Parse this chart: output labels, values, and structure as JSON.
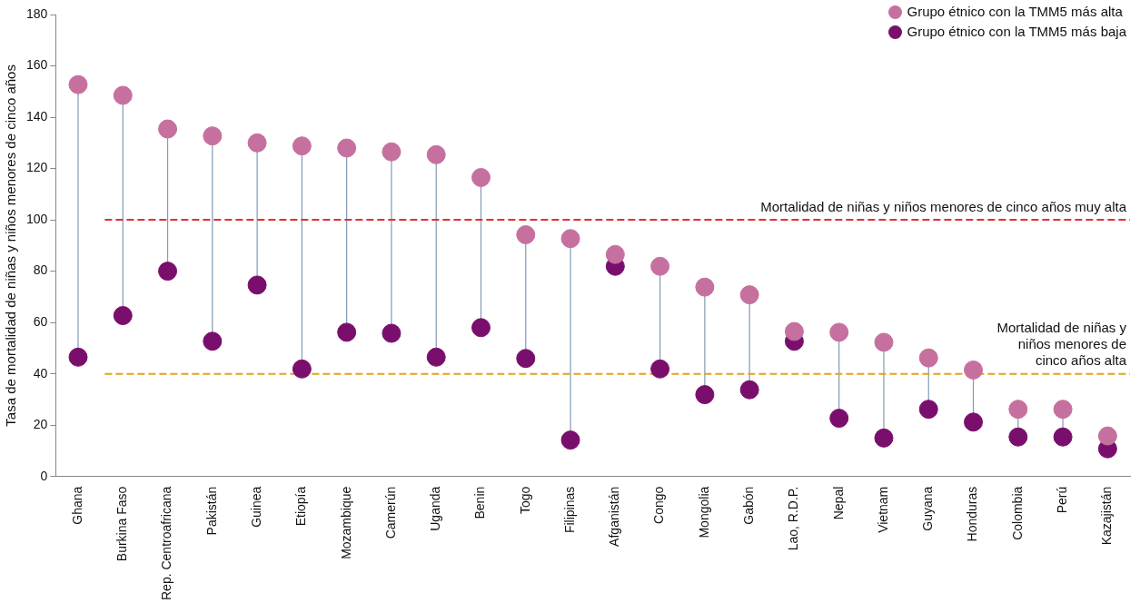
{
  "chart_data": {
    "type": "scatter",
    "ylabel": "Tasa de mortalidad de niñas y niños menores de cinco años",
    "categories": [
      "Ghana",
      "Burkina Faso",
      "Rep. Centroafricana",
      "Pakistán",
      "Guinea",
      "Etiopía",
      "Mozambique",
      "Camerún",
      "Uganda",
      "Benin",
      "Togo",
      "Filipinas",
      "Afganistán",
      "Congo",
      "Mongolia",
      "Gabón",
      "Lao, R.D.P.",
      "Nepal",
      "Vietnam",
      "Guyana",
      "Honduras",
      "Colombia",
      "Perú",
      "Kazajistán"
    ],
    "series": [
      {
        "name": "Grupo étnico con la TMM5 más alta",
        "color": "#c5709e",
        "values": [
          152.7,
          148.5,
          135.4,
          132.7,
          130,
          128.8,
          128,
          126.5,
          125.4,
          116.5,
          94.2,
          92.7,
          86.5,
          81.9,
          73.8,
          70.8,
          56.5,
          56.2,
          52.3,
          46.2,
          41.5,
          26.2,
          26.2,
          15.8
        ]
      },
      {
        "name": "Grupo étnico con la TMM5 más baja",
        "color": "#7a0e6c",
        "values": [
          46.5,
          62.7,
          80,
          52.7,
          74.6,
          41.9,
          56.2,
          55.8,
          46.5,
          58,
          46,
          14.2,
          81.9,
          41.9,
          31.9,
          33.8,
          52.7,
          22.7,
          15,
          26.2,
          21.2,
          15.4,
          15.4,
          10.8
        ]
      }
    ],
    "ylim": [
      0,
      180
    ],
    "yticks": [
      0,
      20,
      40,
      60,
      80,
      100,
      120,
      140,
      160,
      180
    ],
    "grid": false,
    "legend": "top right",
    "marker": "circle",
    "ref_lines": [
      {
        "axis": "y",
        "value": 100,
        "label": "Mortalidad de niñas y niños menores de cinco años muy alta",
        "color": "#e0302f",
        "line_style": "dashed"
      },
      {
        "axis": "y",
        "value": 40,
        "label": "Mortalidad de niñas y niños menores de cinco años alta",
        "color": "#e3a21a",
        "line_style": "dashed"
      }
    ]
  }
}
